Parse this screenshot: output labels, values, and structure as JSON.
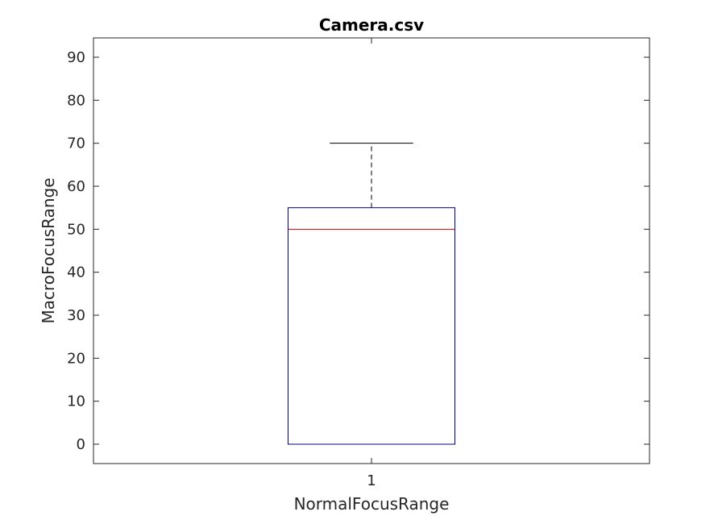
{
  "chart_data": {
    "type": "box",
    "title": "Camera.csv",
    "xlabel": "NormalFocusRange",
    "ylabel": "MacroFocusRange",
    "categories": [
      "1"
    ],
    "ylim": [
      -4.5,
      94.5
    ],
    "yticks": [
      0,
      10,
      20,
      30,
      40,
      50,
      60,
      70,
      80,
      90
    ],
    "boxes": [
      {
        "category": "1",
        "lower_whisker": 0,
        "q1": 0,
        "median": 50,
        "q3": 55,
        "upper_whisker": 70
      }
    ],
    "grid": false,
    "colors": {
      "box": "#00008b",
      "median": "#cc0000",
      "whisker": "#000000",
      "axes": "#262626"
    }
  }
}
